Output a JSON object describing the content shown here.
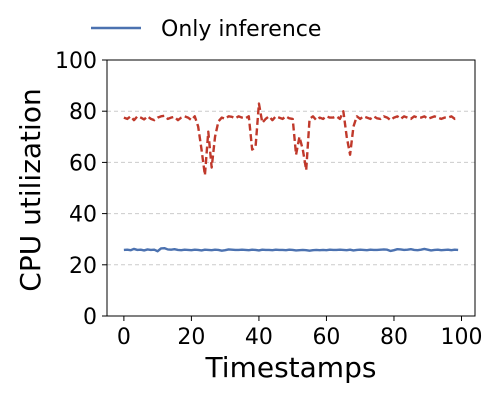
{
  "chart_data": {
    "type": "line",
    "xlabel": "Timestamps",
    "ylabel": "CPU utilization",
    "xlim": [
      -5,
      104
    ],
    "ylim": [
      0,
      100
    ],
    "xticks": [
      0,
      20,
      40,
      60,
      80,
      100
    ],
    "yticks": [
      0,
      20,
      40,
      60,
      80,
      100
    ],
    "grid": "horizontal dashed",
    "legend_position": "top-left, above plot",
    "series": [
      {
        "name": "Only inference",
        "color": "#4c72b0",
        "style": "solid",
        "x": [
          0,
          1,
          2,
          3,
          4,
          5,
          6,
          7,
          8,
          9,
          10,
          11,
          12,
          13,
          14,
          15,
          16,
          17,
          18,
          19,
          20,
          21,
          22,
          23,
          24,
          25,
          26,
          27,
          28,
          29,
          30,
          31,
          32,
          33,
          34,
          35,
          36,
          37,
          38,
          39,
          40,
          41,
          42,
          43,
          44,
          45,
          46,
          47,
          48,
          49,
          50,
          51,
          52,
          53,
          54,
          55,
          56,
          57,
          58,
          59,
          60,
          61,
          62,
          63,
          64,
          65,
          66,
          67,
          68,
          69,
          70,
          71,
          72,
          73,
          74,
          75,
          76,
          77,
          78,
          79,
          80,
          81,
          82,
          83,
          84,
          85,
          86,
          87,
          88,
          89,
          90,
          91,
          92,
          93,
          94,
          95,
          96,
          97,
          98,
          99
        ],
        "values": [
          25.8,
          25.9,
          25.7,
          26.2,
          25.8,
          25.9,
          25.6,
          26.0,
          25.8,
          25.9,
          25.3,
          26.4,
          26.5,
          26.0,
          25.9,
          26.1,
          25.8,
          25.7,
          25.9,
          25.8,
          25.7,
          25.9,
          25.8,
          25.6,
          25.9,
          25.8,
          25.7,
          25.9,
          25.8,
          25.5,
          25.7,
          26.0,
          25.9,
          25.8,
          25.8,
          25.9,
          25.8,
          25.7,
          25.9,
          25.8,
          25.6,
          25.9,
          25.8,
          25.8,
          25.7,
          25.9,
          25.8,
          25.8,
          25.7,
          25.9,
          25.8,
          25.6,
          25.7,
          25.8,
          25.7,
          25.5,
          25.7,
          25.8,
          25.7,
          25.8,
          25.7,
          25.9,
          25.8,
          25.8,
          25.9,
          25.8,
          25.7,
          25.9,
          25.6,
          25.8,
          25.9,
          25.8,
          25.7,
          25.9,
          25.8,
          25.8,
          25.9,
          26.0,
          25.9,
          25.4,
          25.7,
          26.1,
          26.0,
          25.8,
          25.9,
          26.1,
          25.8,
          25.7,
          25.9,
          26.2,
          25.9,
          25.6,
          25.8,
          25.9,
          25.7,
          25.8,
          25.9,
          25.7,
          25.9,
          25.8
        ]
      },
      {
        "color": "#c0392b",
        "style": "dashed",
        "x": [
          0,
          1,
          2,
          3,
          4,
          5,
          6,
          7,
          8,
          9,
          10,
          11,
          12,
          13,
          14,
          15,
          16,
          17,
          18,
          19,
          20,
          21,
          22,
          23,
          24,
          25,
          26,
          27,
          28,
          29,
          30,
          31,
          32,
          33,
          34,
          35,
          36,
          37,
          38,
          39,
          40,
          41,
          42,
          43,
          44,
          45,
          46,
          47,
          48,
          49,
          50,
          51,
          52,
          53,
          54,
          55,
          56,
          57,
          58,
          59,
          60,
          61,
          62,
          63,
          64,
          65,
          66,
          67,
          68,
          69,
          70,
          71,
          72,
          73,
          74,
          75,
          76,
          77,
          78,
          79,
          80,
          81,
          82,
          83,
          84,
          85,
          86,
          87,
          88,
          89,
          90,
          91,
          92,
          93,
          94,
          95,
          96,
          97,
          98,
          99
        ],
        "values": [
          77.5,
          77.0,
          78.0,
          76.5,
          78.0,
          77.5,
          76.8,
          78.0,
          77.0,
          76.5,
          77.5,
          78.0,
          78.2,
          77.0,
          77.5,
          77.8,
          76.5,
          77.5,
          78.0,
          77.5,
          76.5,
          78.0,
          74.0,
          65.0,
          55.0,
          72.0,
          58.0,
          70.0,
          76.0,
          77.5,
          77.0,
          78.0,
          77.8,
          77.2,
          78.0,
          77.5,
          77.2,
          78.0,
          65.0,
          66.0,
          83.0,
          75.5,
          77.0,
          78.0,
          76.5,
          78.0,
          77.5,
          77.0,
          78.0,
          77.2,
          77.0,
          63.0,
          70.0,
          65.0,
          57.0,
          77.0,
          78.0,
          76.5,
          77.5,
          77.0,
          78.0,
          77.5,
          77.5,
          78.0,
          77.0,
          80.0,
          70.0,
          63.0,
          74.0,
          78.0,
          77.0,
          78.0,
          77.5,
          77.0,
          78.0,
          77.2,
          77.0,
          78.0,
          77.5,
          76.5,
          77.5,
          78.0,
          77.0,
          78.0,
          77.5,
          77.0,
          78.0,
          77.5,
          77.5,
          78.0,
          77.0,
          77.5,
          78.0,
          77.5,
          77.0,
          77.5,
          77.5,
          78.0,
          77.0,
          77.2
        ]
      }
    ]
  }
}
